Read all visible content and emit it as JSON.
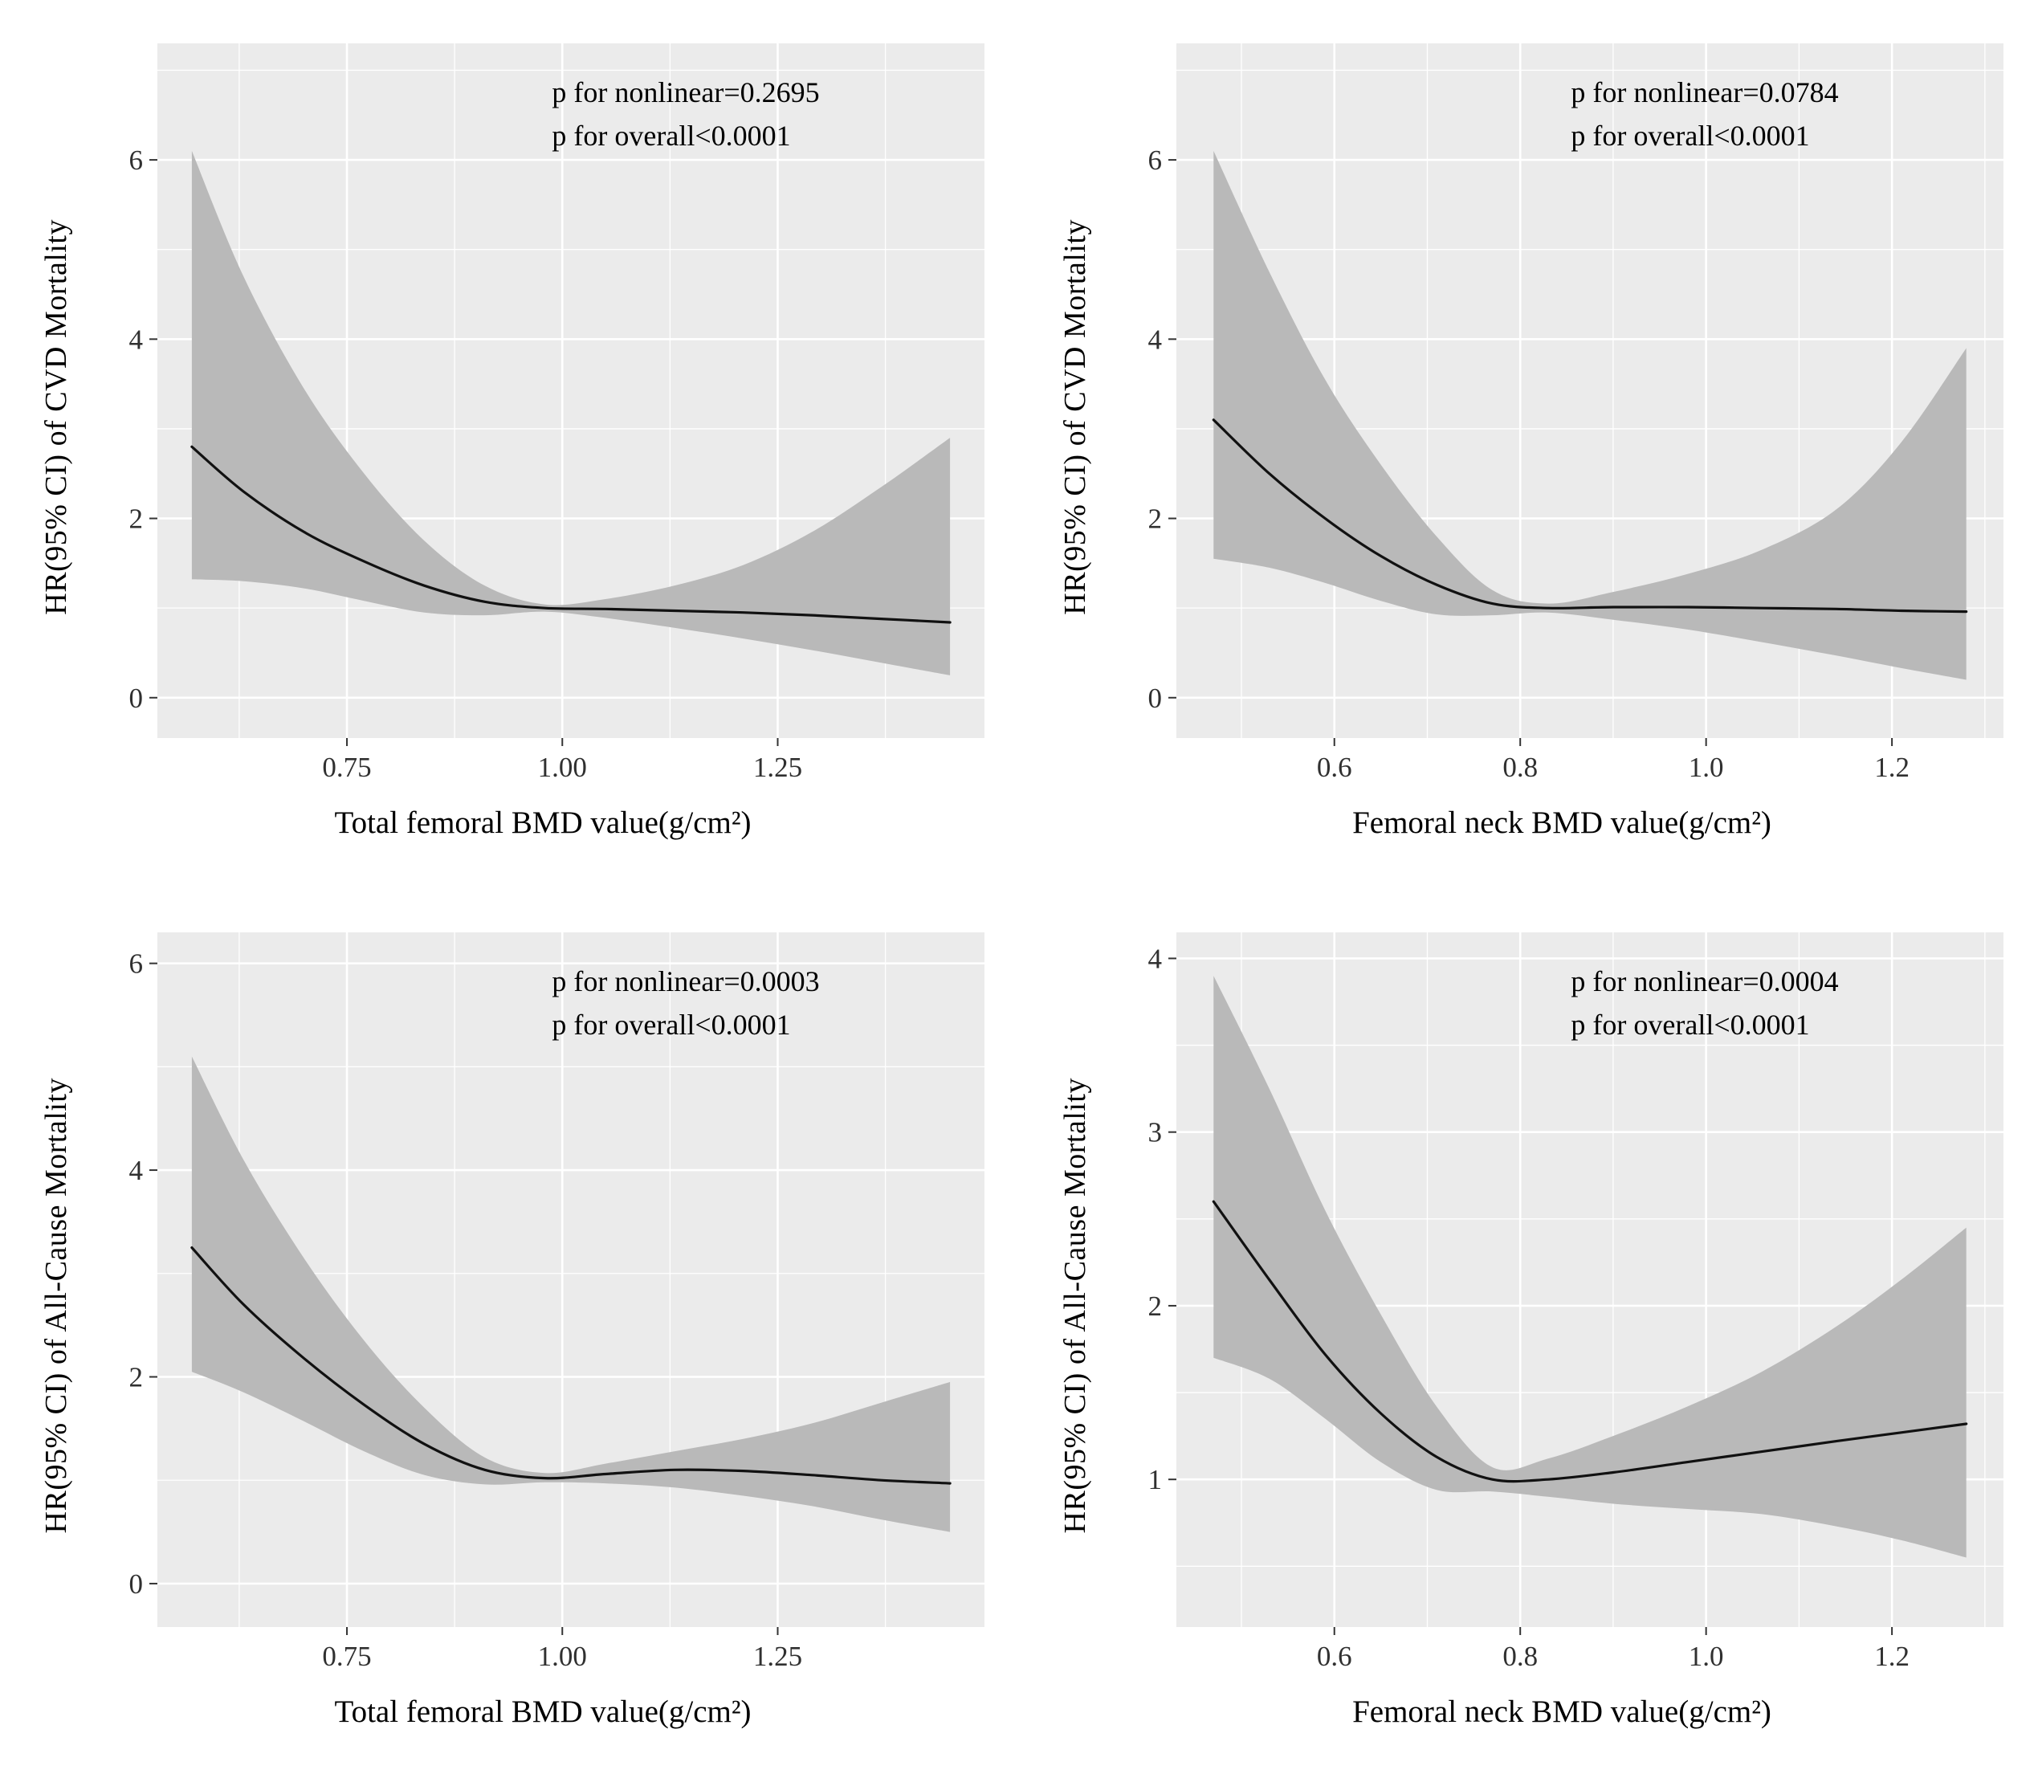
{
  "style": {
    "page_bg": "#ffffff",
    "panel_bg": "#ebebeb",
    "grid_color": "#ffffff",
    "band_color": "#b9b9b9",
    "line_color": "#111111",
    "tick_color": "#333333",
    "text_color": "#000000"
  },
  "chart_data": [
    {
      "type": "line",
      "ylabel": "HR(95% CI) of CVD Mortality",
      "xlabel": "Total femoral BMD value(g/cm²)",
      "annotations": [
        "p for nonlinear=0.2695",
        "p for overall<0.0001"
      ],
      "legend": "none",
      "grid": true,
      "xlim": [
        0.53,
        1.49
      ],
      "ylim": [
        -0.45,
        7.3
      ],
      "xticks": [
        "0.75",
        "1.00",
        "1.25"
      ],
      "xtick_values": [
        0.75,
        1.0,
        1.25
      ],
      "yticks": [
        "0",
        "2",
        "4",
        "6"
      ],
      "ytick_values": [
        0,
        2,
        4,
        6
      ],
      "series": {
        "x": [
          0.57,
          0.63,
          0.7,
          0.77,
          0.84,
          0.91,
          0.98,
          1.05,
          1.13,
          1.21,
          1.29,
          1.37,
          1.45
        ],
        "hr": [
          2.8,
          2.3,
          1.85,
          1.52,
          1.25,
          1.07,
          1.0,
          0.99,
          0.97,
          0.95,
          0.92,
          0.88,
          0.84
        ],
        "ci_upper": [
          6.1,
          4.7,
          3.45,
          2.5,
          1.75,
          1.25,
          1.04,
          1.1,
          1.25,
          1.48,
          1.85,
          2.35,
          2.9
        ],
        "ci_lower": [
          1.32,
          1.3,
          1.22,
          1.08,
          0.95,
          0.92,
          0.96,
          0.89,
          0.78,
          0.66,
          0.53,
          0.39,
          0.25
        ]
      }
    },
    {
      "type": "line",
      "ylabel": "HR(95% CI) of CVD Mortality",
      "xlabel": "Femoral neck BMD value(g/cm²)",
      "annotations": [
        "p for nonlinear=0.0784",
        "p for overall<0.0001"
      ],
      "legend": "none",
      "grid": true,
      "xlim": [
        0.43,
        1.32
      ],
      "ylim": [
        -0.45,
        7.3
      ],
      "xticks": [
        "0.6",
        "0.8",
        "1.0",
        "1.2"
      ],
      "xtick_values": [
        0.6,
        0.8,
        1.0,
        1.2
      ],
      "yticks": [
        "0",
        "2",
        "4",
        "6"
      ],
      "ytick_values": [
        0,
        2,
        4,
        6
      ],
      "series": {
        "x": [
          0.47,
          0.53,
          0.59,
          0.65,
          0.71,
          0.77,
          0.83,
          0.9,
          0.98,
          1.06,
          1.14,
          1.21,
          1.28
        ],
        "hr": [
          3.1,
          2.5,
          2.0,
          1.58,
          1.26,
          1.05,
          1.0,
          1.01,
          1.01,
          1.0,
          0.99,
          0.97,
          0.96
        ],
        "ci_upper": [
          6.1,
          4.75,
          3.55,
          2.6,
          1.8,
          1.2,
          1.05,
          1.18,
          1.38,
          1.65,
          2.1,
          2.85,
          3.9
        ],
        "ci_lower": [
          1.55,
          1.45,
          1.28,
          1.08,
          0.93,
          0.92,
          0.95,
          0.87,
          0.76,
          0.62,
          0.47,
          0.33,
          0.2
        ]
      }
    },
    {
      "type": "line",
      "ylabel": "HR(95% CI) of All-Cause Mortality",
      "xlabel": "Total femoral BMD value(g/cm²)",
      "annotations": [
        "p for nonlinear=0.0003",
        "p for overall<0.0001"
      ],
      "legend": "none",
      "grid": true,
      "xlim": [
        0.53,
        1.49
      ],
      "ylim": [
        -0.42,
        6.3
      ],
      "xticks": [
        "0.75",
        "1.00",
        "1.25"
      ],
      "xtick_values": [
        0.75,
        1.0,
        1.25
      ],
      "yticks": [
        "0",
        "2",
        "4",
        "6"
      ],
      "ytick_values": [
        0,
        2,
        4,
        6
      ],
      "series": {
        "x": [
          0.57,
          0.63,
          0.7,
          0.77,
          0.84,
          0.91,
          0.98,
          1.05,
          1.13,
          1.21,
          1.29,
          1.37,
          1.45
        ],
        "hr": [
          3.25,
          2.7,
          2.18,
          1.73,
          1.35,
          1.1,
          1.02,
          1.06,
          1.1,
          1.09,
          1.05,
          1.0,
          0.97
        ],
        "ci_upper": [
          5.1,
          4.1,
          3.15,
          2.35,
          1.7,
          1.22,
          1.07,
          1.16,
          1.28,
          1.4,
          1.55,
          1.75,
          1.95
        ],
        "ci_lower": [
          2.05,
          1.85,
          1.57,
          1.28,
          1.05,
          0.96,
          0.98,
          0.97,
          0.93,
          0.85,
          0.75,
          0.62,
          0.5
        ]
      }
    },
    {
      "type": "line",
      "ylabel": "HR(95% CI) of All-Cause Mortality",
      "xlabel": "Femoral neck BMD value(g/cm²)",
      "annotations": [
        "p for nonlinear=0.0004",
        "p for overall<0.0001"
      ],
      "legend": "none",
      "grid": true,
      "xlim": [
        0.43,
        1.32
      ],
      "ylim": [
        0.15,
        4.15
      ],
      "xticks": [
        "0.6",
        "0.8",
        "1.0",
        "1.2"
      ],
      "xtick_values": [
        0.6,
        0.8,
        1.0,
        1.2
      ],
      "yticks": [
        "1",
        "2",
        "3",
        "4"
      ],
      "ytick_values": [
        1,
        2,
        3,
        4
      ],
      "series": {
        "x": [
          0.47,
          0.53,
          0.59,
          0.65,
          0.71,
          0.77,
          0.83,
          0.9,
          0.98,
          1.06,
          1.14,
          1.21,
          1.28
        ],
        "hr": [
          2.6,
          2.15,
          1.72,
          1.38,
          1.13,
          1.0,
          1.0,
          1.04,
          1.1,
          1.16,
          1.22,
          1.27,
          1.32
        ],
        "ci_upper": [
          3.9,
          3.25,
          2.55,
          1.95,
          1.42,
          1.07,
          1.12,
          1.25,
          1.42,
          1.62,
          1.88,
          2.15,
          2.45
        ],
        "ci_lower": [
          1.7,
          1.58,
          1.35,
          1.1,
          0.94,
          0.93,
          0.9,
          0.86,
          0.83,
          0.8,
          0.73,
          0.65,
          0.55
        ]
      }
    }
  ]
}
